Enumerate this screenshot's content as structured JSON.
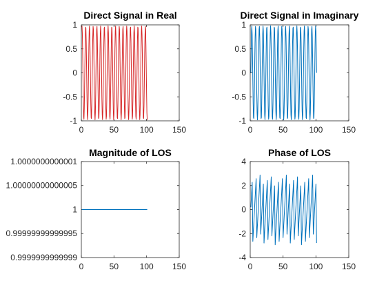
{
  "chart_data": [
    {
      "id": "real",
      "type": "line",
      "title": "Direct Signal in Real",
      "xlim": [
        0,
        150
      ],
      "ylim": [
        -1,
        1
      ],
      "xticks": [
        0,
        50,
        100,
        150
      ],
      "yticks": [
        -1,
        -0.5,
        0,
        0.5,
        1
      ],
      "xtick_labels": [
        "0",
        "50",
        "100",
        "150"
      ],
      "ytick_labels": [
        "-1",
        "-0.5",
        "0",
        "0.5",
        "1"
      ],
      "series": [
        {
          "color": "#d62728",
          "x_start": 1,
          "x_end": 101,
          "cycles": 17.5,
          "phase_deg": 0,
          "amplitude": 0.98,
          "offset": 0,
          "points": 201
        }
      ]
    },
    {
      "id": "imag",
      "type": "line",
      "title": "Direct Signal in Imaginary",
      "xlim": [
        0,
        150
      ],
      "ylim": [
        -1,
        1
      ],
      "xticks": [
        0,
        50,
        100,
        150
      ],
      "yticks": [
        -1,
        -0.5,
        0,
        0.5,
        1
      ],
      "xtick_labels": [
        "0",
        "50",
        "100",
        "150"
      ],
      "ytick_labels": [
        "-1",
        "-0.5",
        "0",
        "0.5",
        "1"
      ],
      "series": [
        {
          "color": "#0072bd",
          "x_start": 1,
          "x_end": 101,
          "cycles": 17.5,
          "phase_deg": 270,
          "amplitude": 0.98,
          "offset": 0,
          "points": 201
        }
      ]
    },
    {
      "id": "mag",
      "type": "line",
      "title": "Magnitude of LOS",
      "xlim": [
        0,
        150
      ],
      "ylim": [
        0.9999999999999,
        1.0000000000001
      ],
      "xticks": [
        0,
        50,
        100,
        150
      ],
      "yticks": [
        0.9999999999999,
        0.99999999999995,
        1,
        1.00000000000005,
        1.0000000000001
      ],
      "xtick_labels": [
        "0",
        "50",
        "100",
        "150"
      ],
      "ytick_labels": [
        "0.9999999999999",
        "0.99999999999995",
        "1",
        "1.00000000000005",
        "1.0000000000001"
      ],
      "series": [
        {
          "color": "#0072bd",
          "x": [
            1,
            101
          ],
          "y": [
            1,
            1
          ]
        }
      ]
    },
    {
      "id": "phase",
      "type": "line",
      "title": "Phase of LOS",
      "xlim": [
        0,
        150
      ],
      "ylim": [
        -4,
        4
      ],
      "xticks": [
        0,
        50,
        100,
        150
      ],
      "yticks": [
        -4,
        -2,
        0,
        2,
        4
      ],
      "xtick_labels": [
        "0",
        "50",
        "100",
        "150"
      ],
      "ytick_labels": [
        "-4",
        "-2",
        "0",
        "2",
        "4"
      ],
      "series": [
        {
          "color": "#0072bd",
          "x_start": 1,
          "x_end": 101,
          "cycles": 17.5,
          "phase_wrap": true,
          "points": 101
        }
      ]
    }
  ]
}
